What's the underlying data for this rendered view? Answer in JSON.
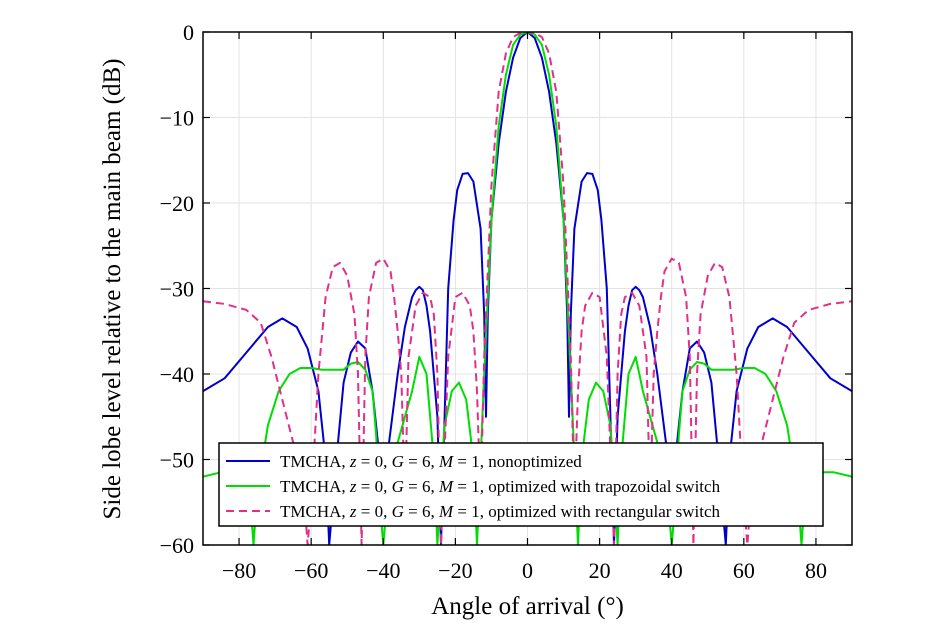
{
  "chart_data": {
    "type": "line",
    "title": "",
    "xlabel": "Angle of arrival (°)",
    "ylabel": "Side lobe level relative to the main beam (dB)",
    "xlim": [
      -90,
      90
    ],
    "ylim": [
      -60,
      0
    ],
    "xticks": [
      -80,
      -60,
      -40,
      -20,
      0,
      20,
      40,
      60,
      80
    ],
    "xtick_labels": [
      "−80",
      "−60",
      "−40",
      "−20",
      "0",
      "20",
      "40",
      "60",
      "80"
    ],
    "yticks": [
      0,
      -10,
      -20,
      -30,
      -40,
      -50,
      -60
    ],
    "ytick_labels": [
      "0",
      "−10",
      "−20",
      "−30",
      "−40",
      "−50",
      "−60"
    ],
    "grid": true,
    "legend_position": "bottom-center",
    "series": [
      {
        "name": "TMCHA, z = 0, G = 6, M = 1, nonoptimized",
        "legend_parts": [
          [
            "TMCHA, ",
            false
          ],
          [
            "z",
            true
          ],
          [
            " = 0, ",
            false
          ],
          [
            "G",
            true
          ],
          [
            " = 6, ",
            false
          ],
          [
            "M",
            true
          ],
          [
            " = 1, nonoptimized",
            false
          ]
        ],
        "color": "#0000cc",
        "dash": "solid",
        "x": [
          -90,
          -84,
          -78,
          -72,
          -68,
          -64,
          -61,
          -58,
          -56,
          -55,
          -53,
          -51,
          -49,
          -47,
          -45,
          -43,
          -41.5,
          -40.5,
          -39,
          -36,
          -34,
          -32,
          -31,
          -30,
          -29,
          -28,
          -27,
          -25,
          -24,
          -23,
          -22,
          -20.5,
          -19.5,
          -18,
          -16.5,
          -15,
          -13,
          -12,
          -11.5,
          -11,
          -10,
          -8,
          -6,
          -4,
          -2,
          0,
          2,
          4,
          6,
          8,
          10,
          11,
          11.5,
          12,
          13,
          15,
          16.5,
          18,
          19.5,
          20.5,
          22,
          23,
          24,
          25,
          27,
          28,
          29,
          30,
          31,
          32,
          34,
          36,
          39,
          40.5,
          41.5,
          43,
          45,
          47,
          49,
          51,
          53,
          55,
          56,
          58,
          61,
          64,
          68,
          72,
          78,
          84,
          90
        ],
        "y": [
          -42,
          -40.5,
          -37.5,
          -34.5,
          -33.5,
          -34.5,
          -37,
          -42,
          -50,
          -60,
          -50,
          -41,
          -37.5,
          -36.2,
          -37,
          -42,
          -48,
          -55,
          -50,
          -40,
          -34.5,
          -31,
          -30.2,
          -29.8,
          -30.2,
          -32,
          -35,
          -45,
          -60,
          -45,
          -30,
          -22,
          -18.5,
          -16.6,
          -16.5,
          -17.5,
          -23,
          -33,
          -45,
          -33,
          -22,
          -13,
          -7,
          -3,
          -0.7,
          0,
          -0.7,
          -3,
          -7,
          -13,
          -22,
          -33,
          -45,
          -33,
          -23,
          -17.5,
          -16.5,
          -16.6,
          -18.5,
          -22,
          -30,
          -45,
          -60,
          -45,
          -35,
          -32,
          -30.2,
          -29.8,
          -30.2,
          -31,
          -34.5,
          -40,
          -50,
          -55,
          -48,
          -42,
          -37,
          -36.2,
          -37.5,
          -41,
          -50,
          -60,
          -50,
          -42,
          -37,
          -34.5,
          -33.5,
          -34.5,
          -37.5,
          -40.5,
          -42
        ]
      },
      {
        "name": "TMCHA, z = 0, G = 6, M = 1, optimized with trapozoidal switch",
        "legend_parts": [
          [
            "TMCHA, ",
            false
          ],
          [
            "z",
            true
          ],
          [
            " = 0, ",
            false
          ],
          [
            "G",
            true
          ],
          [
            " = 6, ",
            false
          ],
          [
            "M",
            true
          ],
          [
            " = 1, optimized with trapozoidal switch",
            false
          ]
        ],
        "color": "#00dd00",
        "dash": "solid",
        "x": [
          -90,
          -85,
          -80,
          -77,
          -76,
          -75,
          -72,
          -69,
          -66,
          -63,
          -60,
          -57,
          -54,
          -51,
          -49,
          -47,
          -45,
          -43,
          -42,
          -41,
          -40,
          -39,
          -38,
          -36,
          -34,
          -32,
          -30,
          -28,
          -26,
          -25,
          -24,
          -23,
          -21,
          -19,
          -17,
          -15,
          -14,
          -13,
          -12,
          -10,
          -8,
          -6,
          -4,
          -2,
          0,
          2,
          4,
          6,
          8,
          10,
          12,
          13,
          14,
          15,
          17,
          19,
          21,
          23,
          24,
          25,
          26,
          28,
          30,
          32,
          34,
          36,
          38,
          39,
          40,
          41,
          42,
          43,
          45,
          47,
          49,
          51,
          54,
          57,
          60,
          63,
          66,
          69,
          72,
          75,
          76,
          77,
          80,
          85,
          90
        ],
        "y": [
          -52,
          -51.5,
          -51.5,
          -54,
          -60,
          -54,
          -46,
          -42,
          -40,
          -39.3,
          -39.3,
          -39.5,
          -39.5,
          -39.5,
          -38.8,
          -38.6,
          -39.5,
          -42,
          -47,
          -55,
          -60,
          -55,
          -52,
          -48,
          -45,
          -42,
          -38,
          -40,
          -50,
          -60,
          -52,
          -46,
          -42,
          -41,
          -43,
          -50,
          -60,
          -50,
          -40,
          -22,
          -11,
          -5,
          -1.5,
          -0.3,
          0,
          -0.3,
          -1.5,
          -5,
          -11,
          -22,
          -40,
          -50,
          -60,
          -50,
          -43,
          -41,
          -42,
          -46,
          -52,
          -60,
          -50,
          -40,
          -38,
          -42,
          -45,
          -48,
          -52,
          -55,
          -60,
          -55,
          -47,
          -42,
          -39.5,
          -38.6,
          -38.8,
          -39.5,
          -39.5,
          -39.5,
          -39.3,
          -39.3,
          -40,
          -42,
          -46,
          -54,
          -60,
          -54,
          -51.5,
          -51.5,
          -52
        ]
      },
      {
        "name": "TMCHA, z = 0, G = 6, M = 1, optimized with rectangular switch",
        "legend_parts": [
          [
            "TMCHA, ",
            false
          ],
          [
            "z",
            true
          ],
          [
            " = 0, ",
            false
          ],
          [
            "G",
            true
          ],
          [
            " = 6, ",
            false
          ],
          [
            "M",
            true
          ],
          [
            " = 1, optimized with rectangular switch",
            false
          ]
        ],
        "color": "#e0308a",
        "dash": "8,5",
        "x": [
          -90,
          -84,
          -78,
          -74,
          -71,
          -68,
          -65,
          -62,
          -61,
          -60,
          -58,
          -56,
          -54,
          -52,
          -50,
          -48,
          -47,
          -46,
          -45,
          -44,
          -42,
          -40,
          -38,
          -37,
          -36,
          -35,
          -34,
          -33,
          -31,
          -29,
          -27,
          -26,
          -25,
          -24,
          -22,
          -20,
          -18,
          -16,
          -15,
          -14,
          -13,
          -12,
          -10,
          -8,
          -6,
          -4,
          -2,
          0,
          2,
          4,
          6,
          8,
          10,
          12,
          13,
          14,
          15,
          16,
          18,
          20,
          22,
          24,
          25,
          26,
          27,
          29,
          31,
          33,
          34,
          35,
          36,
          37,
          38,
          40,
          42,
          44,
          45,
          46,
          47,
          48,
          50,
          52,
          54,
          56,
          58,
          60,
          61,
          62,
          65,
          68,
          71,
          74,
          78,
          84,
          90
        ],
        "y": [
          -31.5,
          -31.8,
          -32.5,
          -34,
          -38,
          -43,
          -48,
          -54,
          -60,
          -55,
          -40,
          -31,
          -27.5,
          -27,
          -28.5,
          -33,
          -40,
          -60,
          -38,
          -31,
          -27,
          -26.5,
          -28,
          -31,
          -35,
          -40,
          -55,
          -38,
          -32,
          -30.5,
          -31,
          -33,
          -40,
          -60,
          -38,
          -31,
          -30.5,
          -32,
          -35,
          -42,
          -55,
          -38,
          -18,
          -7,
          -2.5,
          -0.6,
          -0.1,
          0,
          -0.1,
          -0.6,
          -2.5,
          -7,
          -18,
          -38,
          -55,
          -42,
          -35,
          -32,
          -30.5,
          -31,
          -38,
          -60,
          -40,
          -33,
          -31,
          -30.5,
          -32,
          -38,
          -55,
          -40,
          -35,
          -31,
          -28,
          -26.5,
          -27,
          -31,
          -38,
          -60,
          -40,
          -33,
          -28.5,
          -27,
          -27.5,
          -31,
          -40,
          -55,
          -60,
          -54,
          -48,
          -43,
          -38,
          -34,
          -32.5,
          -31.8,
          -31.5
        ]
      }
    ]
  }
}
